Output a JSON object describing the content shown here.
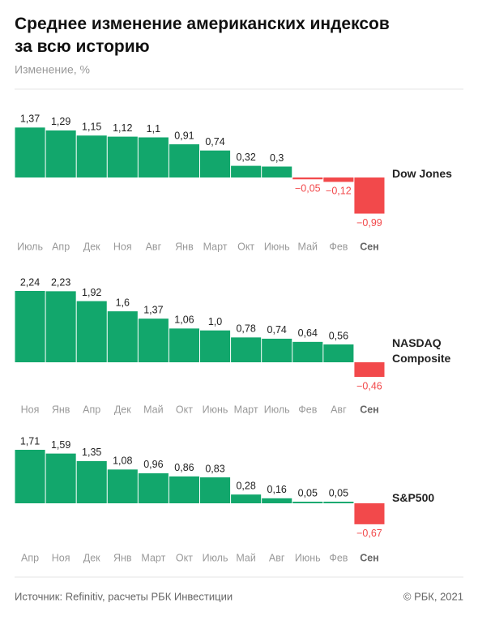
{
  "title": "Среднее изменение американских индексов за всю историю",
  "subtitle": "Изменение, %",
  "source": "Источник:  Refinitiv, расчеты РБК Инвестиции",
  "copyright": "© РБК, 2021",
  "chart_data": [
    {
      "type": "bar",
      "name": "Dow Jones",
      "color": "#12a76c",
      "negative_color": "#f2494b",
      "categories": [
        "Июль",
        "Апр",
        "Дек",
        "Ноя",
        "Авг",
        "Янв",
        "Март",
        "Окт",
        "Июнь",
        "Май",
        "Фев",
        "Сен"
      ],
      "values": [
        1.37,
        1.29,
        1.15,
        1.12,
        1.1,
        0.91,
        0.74,
        0.32,
        0.3,
        -0.05,
        -0.12,
        -0.99
      ],
      "value_labels": [
        "1,37",
        "1,29",
        "1,15",
        "1,12",
        "1,1",
        "0,91",
        "0,74",
        "0,32",
        "0,3",
        "−0,05",
        "−0,12",
        "−0,99"
      ]
    },
    {
      "type": "bar",
      "name": "NASDAQ Composite",
      "color": "#12a76c",
      "negative_color": "#f2494b",
      "categories": [
        "Ноя",
        "Янв",
        "Апр",
        "Дек",
        "Май",
        "Окт",
        "Июнь",
        "Март",
        "Июль",
        "Фев",
        "Авг",
        "Сен"
      ],
      "values": [
        2.24,
        2.23,
        1.92,
        1.6,
        1.37,
        1.06,
        1.0,
        0.78,
        0.74,
        0.64,
        0.56,
        -0.46
      ],
      "value_labels": [
        "2,24",
        "2,23",
        "1,92",
        "1,6",
        "1,37",
        "1,06",
        "1,0",
        "0,78",
        "0,74",
        "0,64",
        "0,56",
        "−0,46"
      ]
    },
    {
      "type": "bar",
      "name": "S&P500",
      "color": "#12a76c",
      "negative_color": "#f2494b",
      "categories": [
        "Апр",
        "Ноя",
        "Дек",
        "Янв",
        "Март",
        "Окт",
        "Июль",
        "Май",
        "Авг",
        "Июнь",
        "Фев",
        "Сен"
      ],
      "values": [
        1.71,
        1.59,
        1.35,
        1.08,
        0.96,
        0.86,
        0.83,
        0.28,
        0.16,
        0.05,
        0.05,
        -0.67
      ],
      "value_labels": [
        "1,71",
        "1,59",
        "1,35",
        "1,08",
        "0,96",
        "0,86",
        "0,83",
        "0,28",
        "0,16",
        "0,05",
        "0,05",
        "−0,67"
      ]
    }
  ]
}
